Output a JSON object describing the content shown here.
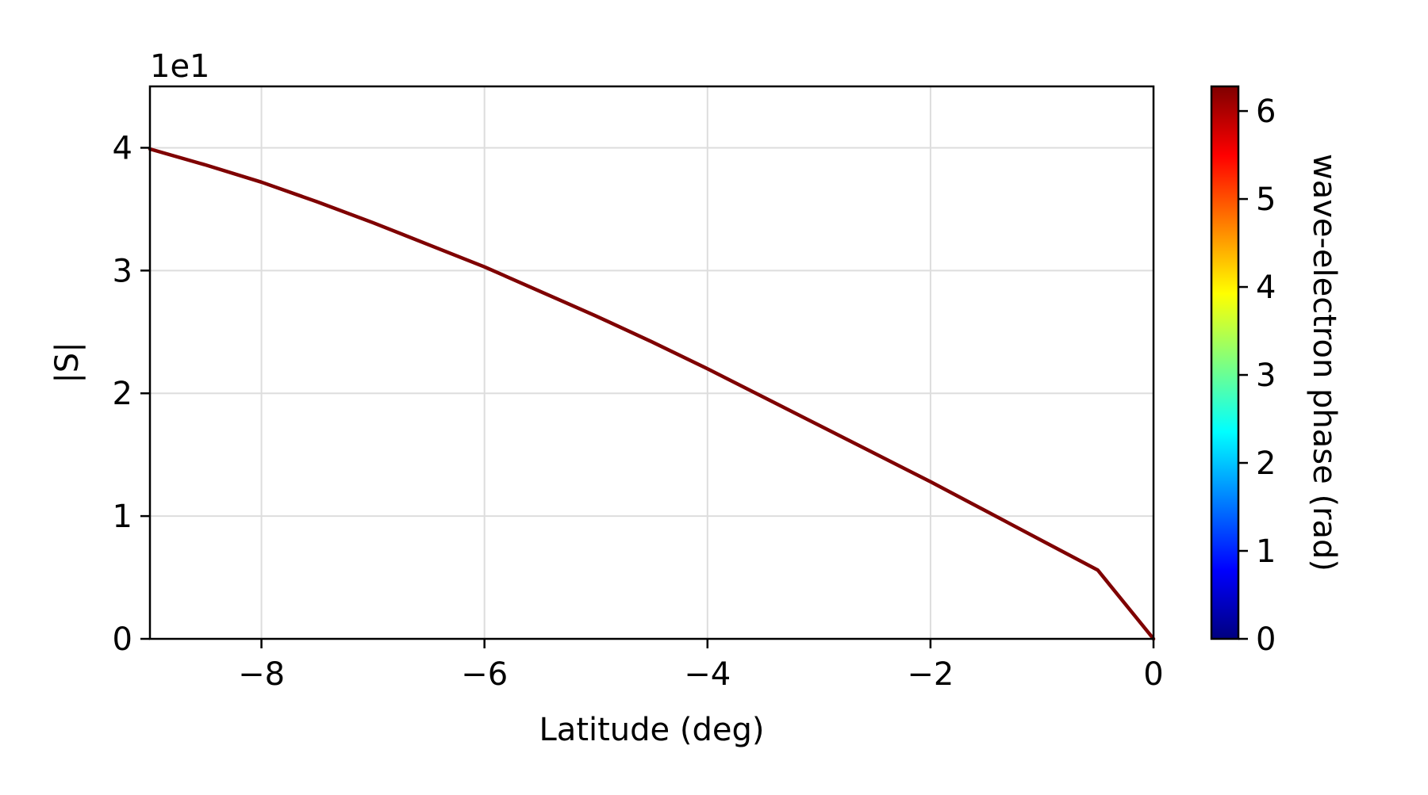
{
  "chart_data": {
    "type": "line",
    "title": "",
    "xlabel": "Latitude (deg)",
    "ylabel": "|S|",
    "y_offset_label": "1e1",
    "xlim": [
      -9,
      0
    ],
    "ylim": [
      0,
      4.5
    ],
    "xticks": [
      -8,
      -6,
      -4,
      -2,
      0
    ],
    "xtick_labels": [
      "−8",
      "−6",
      "−4",
      "−2",
      "0"
    ],
    "yticks": [
      0,
      1,
      2,
      3,
      4
    ],
    "ytick_labels": [
      "0",
      "1",
      "2",
      "3",
      "4"
    ],
    "grid": true,
    "line_color": "#7f0000",
    "series": [
      {
        "x": [
          -9,
          -8.5,
          -8,
          -7.5,
          -7,
          -6.5,
          -6,
          -5.5,
          -5,
          -4.5,
          -4,
          -3.5,
          -3,
          -2.5,
          -2,
          -1.5,
          -1,
          -0.5,
          0
        ],
        "y": [
          3.99,
          3.86,
          3.72,
          3.56,
          3.39,
          3.21,
          3.03,
          2.83,
          2.63,
          2.42,
          2.2,
          1.97,
          1.74,
          1.51,
          1.28,
          1.04,
          0.8,
          0.56,
          0.0
        ]
      }
    ],
    "colorbar": {
      "label": "wave-electron phase (rad)",
      "range": [
        0,
        6.28
      ],
      "ticks": [
        0,
        1,
        2,
        3,
        4,
        5,
        6
      ],
      "tick_labels": [
        "0",
        "1",
        "2",
        "3",
        "4",
        "5",
        "6"
      ],
      "colormap": "jet",
      "colormap_stops": [
        "#00007f",
        "#0000ff",
        "#007fff",
        "#00ffff",
        "#7fff7f",
        "#ffff00",
        "#ff7f00",
        "#ff0000",
        "#7f0000"
      ]
    }
  }
}
